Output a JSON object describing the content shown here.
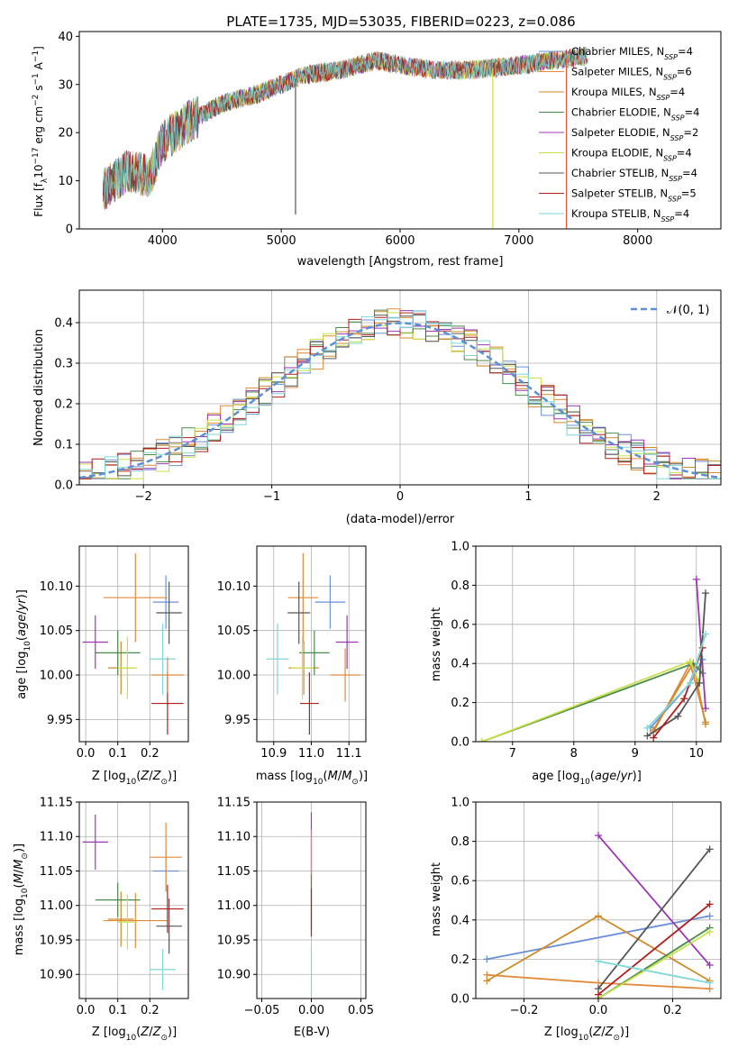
{
  "figure": {
    "title": "PLATE=1735, MJD=53035, FIBERID=0223, z=0.086",
    "colors": {
      "Chabrier MILES": "#6a8fd8",
      "Salpeter MILES": "#e28a3a",
      "Kroupa MILES": "#d08a2a",
      "Chabrier ELODIE": "#4a8a4a",
      "Salpeter ELODIE": "#9c36b5",
      "Kroupa ELODIE": "#c8e04a",
      "Chabrier STELIB": "#555555",
      "Salpeter STELIB": "#b01e1e",
      "Kroupa STELIB": "#7fd6d6"
    }
  },
  "chart_data": [
    {
      "type": "line",
      "id": "spectrum",
      "xlabel": "wavelength [Angstrom, rest frame]",
      "ylabel": "Flux [f_λ 10^-17 erg cm^-2 s^-1 A^-1]",
      "xlim": [
        3300,
        8700
      ],
      "ylim": [
        0,
        41
      ],
      "xticks": [
        4000,
        5000,
        6000,
        7000,
        8000
      ],
      "yticks": [
        0,
        10,
        20,
        30,
        40
      ],
      "legend_placement": "upper right",
      "legend": [
        {
          "model": "Chabrier MILES",
          "label": "Chabrier MILES, N_SSP=4"
        },
        {
          "model": "Salpeter MILES",
          "label": "Salpeter MILES, N_SSP=6"
        },
        {
          "model": "Kroupa MILES",
          "label": "Kroupa MILES, N_SSP=4"
        },
        {
          "model": "Chabrier ELODIE",
          "label": "Chabrier ELODIE, N_SSP=4"
        },
        {
          "model": "Salpeter ELODIE",
          "label": "Salpeter ELODIE, N_SSP=2"
        },
        {
          "model": "Kroupa ELODIE",
          "label": "Kroupa ELODIE, N_SSP=4"
        },
        {
          "model": "Chabrier STELIB",
          "label": "Chabrier STELIB, N_SSP=4"
        },
        {
          "model": "Salpeter STELIB",
          "label": "Salpeter STELIB, N_SSP=5"
        },
        {
          "model": "Kroupa STELIB",
          "label": "Kroupa STELIB, N_SSP=4"
        }
      ],
      "continuum": {
        "x": [
          3500,
          3700,
          3900,
          4000,
          4200,
          4500,
          4800,
          5000,
          5200,
          5500,
          5800,
          6000,
          6300,
          6600,
          7000,
          7300,
          7600
        ],
        "y": [
          8,
          12,
          11,
          18,
          22,
          26,
          28,
          30,
          32,
          33,
          35,
          34,
          33,
          33,
          34,
          35,
          36
        ]
      },
      "spikes": [
        {
          "x": 5120,
          "y": 3
        },
        {
          "x": 6780,
          "y": 0
        },
        {
          "x": 7400,
          "y": 0
        }
      ]
    },
    {
      "type": "step",
      "id": "residuals",
      "xlabel": "(data-model)/error",
      "ylabel": "Normed distribution",
      "xlim": [
        -2.5,
        2.5
      ],
      "ylim": [
        0,
        0.48
      ],
      "xticks": [
        -2,
        -1,
        0,
        1,
        2
      ],
      "yticks": [
        0.0,
        0.1,
        0.2,
        0.3,
        0.4
      ],
      "reference_curve": {
        "label": "𝒩(0, 1)",
        "mean": 0,
        "sd": 1,
        "color": "#5b8fd6"
      },
      "bins": {
        "start": -2.5,
        "width": 0.1,
        "count": 50
      },
      "grid": true
    },
    {
      "type": "errorbar",
      "id": "age-vs-Z",
      "xlabel": "Z [log10(Z/Z⊙)]",
      "ylabel": "age [log10(age/yr)]",
      "xlim": [
        -0.02,
        0.32
      ],
      "ylim": [
        9.925,
        10.145
      ],
      "xticks": [
        0.0,
        0.1,
        0.2
      ],
      "yticks": [
        9.95,
        10.0,
        10.05,
        10.1
      ],
      "points": [
        {
          "model": "Chabrier MILES",
          "x": 0.25,
          "xerr": 0.04,
          "y": 10.082,
          "yerr": 0.03
        },
        {
          "model": "Salpeter MILES",
          "x": 0.155,
          "xerr": 0.1,
          "y": 10.087,
          "yerr": 0.05
        },
        {
          "model": "Kroupa MILES",
          "x": 0.11,
          "xerr": 0.04,
          "y": 10.008,
          "yerr": 0.03
        },
        {
          "model": "Chabrier ELODIE",
          "x": 0.1,
          "xerr": 0.07,
          "y": 10.025,
          "yerr": 0.025
        },
        {
          "model": "Salpeter ELODIE",
          "x": 0.03,
          "xerr": 0.04,
          "y": 10.037,
          "yerr": 0.03
        },
        {
          "model": "Kroupa ELODIE",
          "x": 0.13,
          "xerr": 0.03,
          "y": 10.008,
          "yerr": 0.035
        },
        {
          "model": "Chabrier STELIB",
          "x": 0.26,
          "xerr": 0.04,
          "y": 10.07,
          "yerr": 0.035
        },
        {
          "model": "Salpeter STELIB",
          "x": 0.255,
          "xerr": 0.05,
          "y": 9.968,
          "yerr": 0.035
        },
        {
          "model": "Kroupa STELIB",
          "x": 0.24,
          "xerr": 0.04,
          "y": 10.018,
          "yerr": 0.04
        },
        {
          "model": "Salpeter MILES",
          "x": 0.255,
          "xerr": 0.05,
          "y": 10.0,
          "yerr": 0.02
        }
      ]
    },
    {
      "type": "errorbar",
      "id": "age-vs-mass",
      "xlabel": "mass [log10(M/M⊙)]",
      "ylabel": "",
      "xlim": [
        10.855,
        11.145
      ],
      "ylim": [
        9.925,
        10.145
      ],
      "xticks": [
        10.9,
        11.0,
        11.1
      ],
      "yticks": [
        9.95,
        10.0,
        10.05,
        10.1
      ],
      "points": [
        {
          "model": "Chabrier MILES",
          "x": 11.05,
          "xerr": 0.04,
          "y": 10.082,
          "yerr": 0.03
        },
        {
          "model": "Salpeter MILES",
          "x": 10.978,
          "xerr": 0.04,
          "y": 10.087,
          "yerr": 0.05
        },
        {
          "model": "Kroupa MILES",
          "x": 10.98,
          "xerr": 0.04,
          "y": 10.008,
          "yerr": 0.03
        },
        {
          "model": "Chabrier ELODIE",
          "x": 11.008,
          "xerr": 0.04,
          "y": 10.025,
          "yerr": 0.025
        },
        {
          "model": "Salpeter ELODIE",
          "x": 11.095,
          "xerr": 0.03,
          "y": 10.037,
          "yerr": 0.03
        },
        {
          "model": "Kroupa ELODIE",
          "x": 10.976,
          "xerr": 0.03,
          "y": 10.008,
          "yerr": 0.035
        },
        {
          "model": "Chabrier STELIB",
          "x": 10.967,
          "xerr": 0.03,
          "y": 10.07,
          "yerr": 0.035
        },
        {
          "model": "Salpeter STELIB",
          "x": 10.995,
          "xerr": 0.025,
          "y": 9.968,
          "yerr": 0.035
        },
        {
          "model": "Kroupa STELIB",
          "x": 10.91,
          "xerr": 0.03,
          "y": 10.018,
          "yerr": 0.04
        },
        {
          "model": "Salpeter MILES",
          "x": 11.09,
          "xerr": 0.04,
          "y": 10.0,
          "yerr": 0.03
        }
      ]
    },
    {
      "type": "line",
      "id": "weight-vs-age",
      "xlabel": "age [log10(age/yr)]",
      "ylabel": "mass weight",
      "xlim": [
        6.4,
        10.4
      ],
      "ylim": [
        0,
        1.0
      ],
      "xticks": [
        7,
        8,
        9,
        10
      ],
      "yticks": [
        0.0,
        0.2,
        0.4,
        0.6,
        0.8,
        1.0
      ],
      "series": [
        {
          "model": "Chabrier MILES",
          "x": [
            9.25,
            9.9,
            10.1
          ],
          "y": [
            0.07,
            0.3,
            0.42
          ]
        },
        {
          "model": "Salpeter MILES",
          "x": [
            9.3,
            9.9,
            10.15
          ],
          "y": [
            0.05,
            0.4,
            0.1
          ]
        },
        {
          "model": "Kroupa MILES",
          "x": [
            9.3,
            9.95,
            10.15
          ],
          "y": [
            0.06,
            0.4,
            0.09
          ]
        },
        {
          "model": "Chabrier ELODIE",
          "x": [
            6.5,
            9.95,
            10.1
          ],
          "y": [
            0.0,
            0.4,
            0.35
          ]
        },
        {
          "model": "Salpeter ELODIE",
          "x": [
            10.0,
            10.15
          ],
          "y": [
            0.83,
            0.17
          ]
        },
        {
          "model": "Kroupa ELODIE",
          "x": [
            6.5,
            9.9,
            10.05
          ],
          "y": [
            0.0,
            0.41,
            0.3
          ]
        },
        {
          "model": "Chabrier STELIB",
          "x": [
            9.2,
            9.7,
            10.05,
            10.15
          ],
          "y": [
            0.03,
            0.13,
            0.3,
            0.76
          ]
        },
        {
          "model": "Salpeter STELIB",
          "x": [
            9.3,
            9.8,
            10.1
          ],
          "y": [
            0.02,
            0.22,
            0.48
          ]
        },
        {
          "model": "Kroupa STELIB",
          "x": [
            9.2,
            9.9,
            10.15
          ],
          "y": [
            0.07,
            0.3,
            0.55
          ]
        }
      ]
    },
    {
      "type": "errorbar",
      "id": "mass-vs-Z",
      "xlabel": "Z [log10(Z/Z⊙)]",
      "ylabel": "mass [log10(M/M⊙)]",
      "xlim": [
        -0.02,
        0.32
      ],
      "ylim": [
        10.865,
        11.15
      ],
      "xticks": [
        0.0,
        0.1,
        0.2
      ],
      "yticks": [
        10.9,
        10.95,
        11.0,
        11.05,
        11.1,
        11.15
      ],
      "points": [
        {
          "model": "Chabrier MILES",
          "x": 0.25,
          "xerr": 0.04,
          "y": 11.05,
          "yerr": 0.03
        },
        {
          "model": "Salpeter MILES",
          "x": 0.155,
          "xerr": 0.1,
          "y": 10.978,
          "yerr": 0.04
        },
        {
          "model": "Kroupa MILES",
          "x": 0.11,
          "xerr": 0.04,
          "y": 10.98,
          "yerr": 0.04
        },
        {
          "model": "Chabrier ELODIE",
          "x": 0.1,
          "xerr": 0.07,
          "y": 11.008,
          "yerr": 0.025
        },
        {
          "model": "Salpeter ELODIE",
          "x": 0.03,
          "xerr": 0.04,
          "y": 11.092,
          "yerr": 0.04
        },
        {
          "model": "Kroupa ELODIE",
          "x": 0.13,
          "xerr": 0.03,
          "y": 10.976,
          "yerr": 0.04
        },
        {
          "model": "Chabrier STELIB",
          "x": 0.26,
          "xerr": 0.04,
          "y": 10.97,
          "yerr": 0.04
        },
        {
          "model": "Salpeter STELIB",
          "x": 0.255,
          "xerr": 0.05,
          "y": 10.995,
          "yerr": 0.035
        },
        {
          "model": "Kroupa STELIB",
          "x": 0.24,
          "xerr": 0.04,
          "y": 10.907,
          "yerr": 0.03
        },
        {
          "model": "Salpeter MILES",
          "x": 0.25,
          "xerr": 0.05,
          "y": 11.07,
          "yerr": 0.05
        }
      ]
    },
    {
      "type": "errorbar",
      "id": "mass-vs-ebv",
      "xlabel": "E(B-V)",
      "ylabel": "",
      "xlim": [
        -0.055,
        0.055
      ],
      "ylim": [
        10.865,
        11.15
      ],
      "xticks": [
        -0.05,
        0.0,
        0.05
      ],
      "yticks": [
        10.9,
        10.95,
        11.0,
        11.05,
        11.1,
        11.15
      ],
      "points": [
        {
          "model": "Salpeter ELODIE",
          "x": 0,
          "xerr": 0,
          "y": 11.09,
          "yerr": 0.045
        },
        {
          "model": "Salpeter MILES",
          "x": 0,
          "xerr": 0,
          "y": 11.07,
          "yerr": 0.04
        },
        {
          "model": "Chabrier ELODIE",
          "x": 0,
          "xerr": 0,
          "y": 11.005,
          "yerr": 0.04
        },
        {
          "model": "Salpeter STELIB",
          "x": 0,
          "xerr": 0,
          "y": 10.99,
          "yerr": 0.035
        },
        {
          "model": "Kroupa STELIB",
          "x": 0,
          "xerr": 0,
          "y": 10.905,
          "yerr": 0.035
        }
      ]
    },
    {
      "type": "line",
      "id": "weight-vs-Z",
      "xlabel": "Z [log10(Z/Z⊙)]",
      "ylabel": "mass weight",
      "xlim": [
        -0.33,
        0.33
      ],
      "ylim": [
        0,
        1.0
      ],
      "xticks": [
        -0.2,
        0.0,
        0.2
      ],
      "yticks": [
        0.0,
        0.2,
        0.4,
        0.6,
        0.8,
        1.0
      ],
      "series": [
        {
          "model": "Chabrier MILES",
          "x": [
            -0.3,
            0.3
          ],
          "y": [
            0.2,
            0.42
          ]
        },
        {
          "model": "Salpeter MILES",
          "x": [
            -0.3,
            0.0,
            0.3
          ],
          "y": [
            0.12,
            0.08,
            0.05
          ]
        },
        {
          "model": "Kroupa MILES",
          "x": [
            -0.3,
            0.0,
            0.3
          ],
          "y": [
            0.09,
            0.42,
            0.09
          ]
        },
        {
          "model": "Chabrier ELODIE",
          "x": [
            0.0,
            0.3
          ],
          "y": [
            0.0,
            0.36
          ]
        },
        {
          "model": "Salpeter ELODIE",
          "x": [
            0.0,
            0.3
          ],
          "y": [
            0.83,
            0.17
          ]
        },
        {
          "model": "Kroupa ELODIE",
          "x": [
            0.0,
            0.3
          ],
          "y": [
            0.0,
            0.34
          ]
        },
        {
          "model": "Chabrier STELIB",
          "x": [
            0.0,
            0.3
          ],
          "y": [
            0.05,
            0.76
          ]
        },
        {
          "model": "Salpeter STELIB",
          "x": [
            0.0,
            0.3
          ],
          "y": [
            0.02,
            0.48
          ]
        },
        {
          "model": "Kroupa STELIB",
          "x": [
            0.0,
            0.3
          ],
          "y": [
            0.19,
            0.08
          ]
        }
      ]
    }
  ]
}
